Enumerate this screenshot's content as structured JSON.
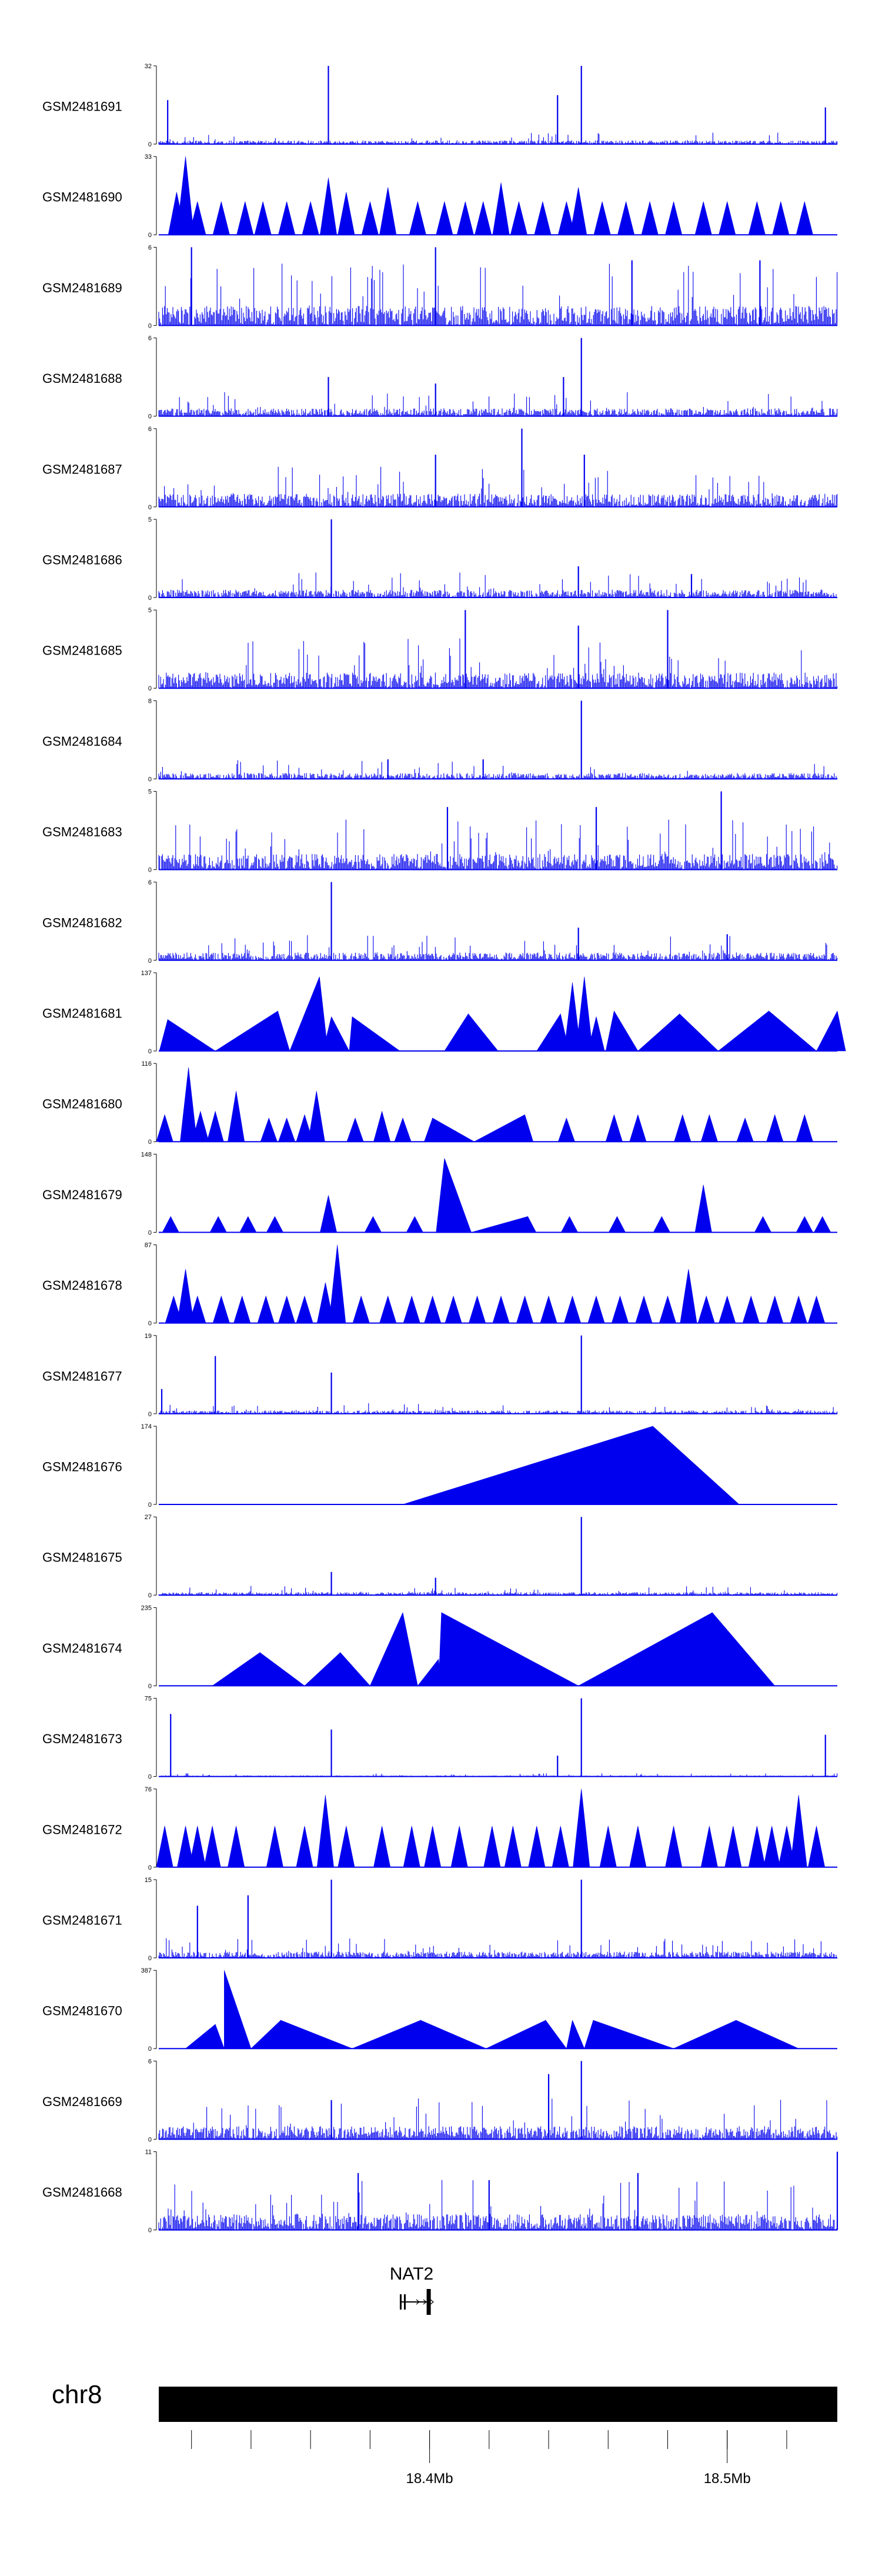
{
  "figure": {
    "chromosome": "chr8",
    "gene": {
      "name": "NAT2",
      "start_mb": 18.39,
      "end_mb": 18.4
    },
    "x_range_mb": [
      18.309,
      18.537
    ],
    "genome_ticks": [
      {
        "mb": 18.4,
        "label": "18.4Mb"
      },
      {
        "mb": 18.5,
        "label": "18.5Mb"
      }
    ],
    "minor_ticks_mb": [
      18.32,
      18.34,
      18.36,
      18.38,
      18.4,
      18.42,
      18.44,
      18.46,
      18.48,
      18.5,
      18.52
    ],
    "colors": {
      "signal": "#0000ee",
      "ideogram": "#000000",
      "axis": "#000000",
      "gene": "#000000"
    }
  },
  "chart_data": {
    "type": "area",
    "title": "",
    "xlabel": "chr8",
    "ylabel": "",
    "x_unit": "Mb",
    "x_range": [
      18.309,
      18.537
    ],
    "series": [
      {
        "name": "GSM2481691",
        "ymax": 32,
        "style": "noise",
        "baseline": 1.5,
        "spikes": [
          [
            18.366,
            32
          ],
          [
            18.443,
            20
          ],
          [
            18.451,
            32
          ],
          [
            18.533,
            15
          ],
          [
            18.312,
            18
          ]
        ]
      },
      {
        "name": "GSM2481690",
        "ymax": 33,
        "style": "triangles",
        "peaks": [
          [
            18.315,
            18
          ],
          [
            18.318,
            33
          ],
          [
            18.322,
            14
          ],
          [
            18.33,
            14
          ],
          [
            18.338,
            14
          ],
          [
            18.344,
            14
          ],
          [
            18.352,
            14
          ],
          [
            18.36,
            14
          ],
          [
            18.366,
            24
          ],
          [
            18.372,
            18
          ],
          [
            18.38,
            14
          ],
          [
            18.386,
            20
          ],
          [
            18.396,
            14
          ],
          [
            18.405,
            14
          ],
          [
            18.412,
            14
          ],
          [
            18.418,
            14
          ],
          [
            18.424,
            22
          ],
          [
            18.43,
            14
          ],
          [
            18.438,
            14
          ],
          [
            18.446,
            14
          ],
          [
            18.45,
            20
          ],
          [
            18.458,
            14
          ],
          [
            18.466,
            14
          ],
          [
            18.474,
            14
          ],
          [
            18.482,
            14
          ],
          [
            18.492,
            14
          ],
          [
            18.5,
            14
          ],
          [
            18.51,
            14
          ],
          [
            18.518,
            14
          ],
          [
            18.526,
            14
          ]
        ]
      },
      {
        "name": "GSM2481689",
        "ymax": 6,
        "style": "noise",
        "baseline": 1.5,
        "spikes": [
          [
            18.32,
            6
          ],
          [
            18.402,
            6
          ],
          [
            18.468,
            5
          ],
          [
            18.511,
            5
          ]
        ]
      },
      {
        "name": "GSM2481688",
        "ymax": 6,
        "style": "noise",
        "baseline": 0.6,
        "spikes": [
          [
            18.451,
            6
          ],
          [
            18.366,
            3
          ],
          [
            18.402,
            2.5
          ],
          [
            18.445,
            3
          ]
        ]
      },
      {
        "name": "GSM2481687",
        "ymax": 6,
        "style": "noise",
        "baseline": 1.0,
        "spikes": [
          [
            18.431,
            6
          ],
          [
            18.402,
            4
          ],
          [
            18.452,
            4
          ]
        ]
      },
      {
        "name": "GSM2481686",
        "ymax": 5,
        "style": "noise",
        "baseline": 0.5,
        "spikes": [
          [
            18.367,
            5
          ],
          [
            18.45,
            2
          ],
          [
            18.488,
            1.5
          ]
        ]
      },
      {
        "name": "GSM2481685",
        "ymax": 5,
        "style": "noise",
        "baseline": 1.0,
        "spikes": [
          [
            18.412,
            5
          ],
          [
            18.48,
            5
          ],
          [
            18.45,
            4
          ]
        ]
      },
      {
        "name": "GSM2481684",
        "ymax": 8,
        "style": "noise",
        "baseline": 0.6,
        "spikes": [
          [
            18.451,
            8
          ],
          [
            18.386,
            2
          ],
          [
            18.418,
            2
          ]
        ]
      },
      {
        "name": "GSM2481683",
        "ymax": 5,
        "style": "noise",
        "baseline": 1.0,
        "spikes": [
          [
            18.498,
            5
          ],
          [
            18.406,
            4
          ],
          [
            18.456,
            4
          ]
        ]
      },
      {
        "name": "GSM2481682",
        "ymax": 6,
        "style": "noise",
        "baseline": 0.6,
        "spikes": [
          [
            18.367,
            6
          ],
          [
            18.45,
            2.5
          ],
          [
            18.5,
            2
          ]
        ]
      },
      {
        "name": "GSM2481681",
        "ymax": 137,
        "style": "triangles",
        "peaks": [
          [
            18.312,
            55
          ],
          [
            18.328,
            0
          ],
          [
            18.353,
            0
          ],
          [
            18.373,
            0
          ],
          [
            18.349,
            70
          ],
          [
            18.363,
            130
          ],
          [
            18.367,
            60
          ],
          [
            18.374,
            60
          ],
          [
            18.39,
            0
          ],
          [
            18.405,
            0
          ],
          [
            18.413,
            65
          ],
          [
            18.423,
            0
          ],
          [
            18.436,
            0
          ],
          [
            18.444,
            65
          ],
          [
            18.448,
            120
          ],
          [
            18.452,
            130
          ],
          [
            18.456,
            60
          ],
          [
            18.462,
            70
          ],
          [
            18.47,
            0
          ],
          [
            18.484,
            65
          ],
          [
            18.497,
            0
          ],
          [
            18.514,
            70
          ],
          [
            18.53,
            0
          ],
          [
            18.537,
            70
          ]
        ]
      },
      {
        "name": "GSM2481680",
        "ymax": 116,
        "style": "triangles",
        "peaks": [
          [
            18.311,
            40
          ],
          [
            18.319,
            110
          ],
          [
            18.323,
            45
          ],
          [
            18.328,
            45
          ],
          [
            18.335,
            75
          ],
          [
            18.346,
            35
          ],
          [
            18.352,
            35
          ],
          [
            18.358,
            40
          ],
          [
            18.362,
            75
          ],
          [
            18.375,
            35
          ],
          [
            18.384,
            45
          ],
          [
            18.391,
            35
          ],
          [
            18.401,
            35
          ],
          [
            18.415,
            0
          ],
          [
            18.432,
            40
          ],
          [
            18.446,
            35
          ],
          [
            18.462,
            40
          ],
          [
            18.47,
            40
          ],
          [
            18.485,
            40
          ],
          [
            18.494,
            40
          ],
          [
            18.506,
            35
          ],
          [
            18.516,
            40
          ],
          [
            18.526,
            40
          ]
        ]
      },
      {
        "name": "GSM2481679",
        "ymax": 148,
        "style": "triangles",
        "peaks": [
          [
            18.313,
            30
          ],
          [
            18.329,
            30
          ],
          [
            18.339,
            30
          ],
          [
            18.348,
            30
          ],
          [
            18.366,
            70
          ],
          [
            18.381,
            30
          ],
          [
            18.395,
            30
          ],
          [
            18.405,
            140
          ],
          [
            18.414,
            0
          ],
          [
            18.433,
            30
          ],
          [
            18.447,
            30
          ],
          [
            18.463,
            30
          ],
          [
            18.478,
            30
          ],
          [
            18.492,
            90
          ],
          [
            18.512,
            30
          ],
          [
            18.526,
            30
          ],
          [
            18.532,
            30
          ]
        ]
      },
      {
        "name": "GSM2481678",
        "ymax": 87,
        "style": "triangles",
        "peaks": [
          [
            18.314,
            30
          ],
          [
            18.318,
            60
          ],
          [
            18.322,
            30
          ],
          [
            18.33,
            30
          ],
          [
            18.337,
            30
          ],
          [
            18.345,
            30
          ],
          [
            18.352,
            30
          ],
          [
            18.358,
            30
          ],
          [
            18.365,
            45
          ],
          [
            18.369,
            87
          ],
          [
            18.377,
            30
          ],
          [
            18.386,
            30
          ],
          [
            18.394,
            30
          ],
          [
            18.401,
            30
          ],
          [
            18.408,
            30
          ],
          [
            18.416,
            30
          ],
          [
            18.424,
            30
          ],
          [
            18.432,
            30
          ],
          [
            18.44,
            30
          ],
          [
            18.448,
            30
          ],
          [
            18.456,
            30
          ],
          [
            18.464,
            30
          ],
          [
            18.472,
            30
          ],
          [
            18.48,
            30
          ],
          [
            18.487,
            60
          ],
          [
            18.493,
            30
          ],
          [
            18.5,
            30
          ],
          [
            18.508,
            30
          ],
          [
            18.516,
            30
          ],
          [
            18.524,
            30
          ],
          [
            18.53,
            30
          ]
        ]
      },
      {
        "name": "GSM2481677",
        "ymax": 19,
        "style": "noise",
        "baseline": 0.8,
        "spikes": [
          [
            18.451,
            19
          ],
          [
            18.328,
            14
          ],
          [
            18.367,
            10
          ],
          [
            18.31,
            6
          ]
        ]
      },
      {
        "name": "GSM2481676",
        "ymax": 174,
        "style": "triangles",
        "peaks": [
          [
            18.391,
            0
          ],
          [
            18.475,
            174
          ],
          [
            18.504,
            0
          ]
        ]
      },
      {
        "name": "GSM2481675",
        "ymax": 27,
        "style": "noise",
        "baseline": 1.0,
        "spikes": [
          [
            18.451,
            27
          ],
          [
            18.367,
            8
          ],
          [
            18.402,
            6
          ]
        ]
      },
      {
        "name": "GSM2481674",
        "ymax": 235,
        "style": "triangles",
        "peaks": [
          [
            18.327,
            0
          ],
          [
            18.343,
            100
          ],
          [
            18.358,
            0
          ],
          [
            18.37,
            100
          ],
          [
            18.38,
            0
          ],
          [
            18.391,
            220
          ],
          [
            18.396,
            0
          ],
          [
            18.403,
            80
          ],
          [
            18.404,
            220
          ],
          [
            18.45,
            0
          ],
          [
            18.495,
            220
          ],
          [
            18.516,
            0
          ]
        ]
      },
      {
        "name": "GSM2481673",
        "ymax": 75,
        "style": "noise",
        "baseline": 1.0,
        "spikes": [
          [
            18.313,
            60
          ],
          [
            18.367,
            45
          ],
          [
            18.451,
            75
          ],
          [
            18.443,
            20
          ],
          [
            18.533,
            40
          ]
        ]
      },
      {
        "name": "GSM2481672",
        "ymax": 76,
        "style": "triangles",
        "peaks": [
          [
            18.311,
            40
          ],
          [
            18.318,
            40
          ],
          [
            18.322,
            40
          ],
          [
            18.327,
            40
          ],
          [
            18.335,
            40
          ],
          [
            18.348,
            40
          ],
          [
            18.358,
            40
          ],
          [
            18.365,
            70
          ],
          [
            18.372,
            40
          ],
          [
            18.384,
            40
          ],
          [
            18.394,
            40
          ],
          [
            18.401,
            40
          ],
          [
            18.41,
            40
          ],
          [
            18.421,
            40
          ],
          [
            18.428,
            40
          ],
          [
            18.436,
            40
          ],
          [
            18.444,
            40
          ],
          [
            18.451,
            76
          ],
          [
            18.46,
            40
          ],
          [
            18.47,
            40
          ],
          [
            18.482,
            40
          ],
          [
            18.494,
            40
          ],
          [
            18.502,
            40
          ],
          [
            18.51,
            40
          ],
          [
            18.515,
            40
          ],
          [
            18.52,
            40
          ],
          [
            18.524,
            70
          ],
          [
            18.53,
            40
          ]
        ]
      },
      {
        "name": "GSM2481671",
        "ymax": 15,
        "style": "noise",
        "baseline": 1.2,
        "spikes": [
          [
            18.339,
            12
          ],
          [
            18.367,
            15
          ],
          [
            18.451,
            15
          ],
          [
            18.322,
            10
          ]
        ]
      },
      {
        "name": "GSM2481670",
        "ymax": 387,
        "style": "triangles",
        "peaks": [
          [
            18.318,
            0
          ],
          [
            18.328,
            120
          ],
          [
            18.331,
            0
          ],
          [
            18.331,
            387
          ],
          [
            18.34,
            0
          ],
          [
            18.35,
            140
          ],
          [
            18.374,
            0
          ],
          [
            18.397,
            140
          ],
          [
            18.419,
            0
          ],
          [
            18.439,
            140
          ],
          [
            18.446,
            0
          ],
          [
            18.448,
            140
          ],
          [
            18.452,
            0
          ],
          [
            18.455,
            140
          ],
          [
            18.482,
            0
          ],
          [
            18.503,
            140
          ],
          [
            18.524,
            0
          ]
        ]
      },
      {
        "name": "GSM2481669",
        "ymax": 6,
        "style": "noise",
        "baseline": 1.0,
        "spikes": [
          [
            18.451,
            6
          ],
          [
            18.44,
            5
          ],
          [
            18.367,
            3
          ]
        ]
      },
      {
        "name": "GSM2481668",
        "ymax": 11,
        "style": "noise",
        "baseline": 2.2,
        "spikes": [
          [
            18.537,
            11
          ],
          [
            18.376,
            8
          ],
          [
            18.42,
            7
          ],
          [
            18.47,
            8
          ]
        ]
      }
    ]
  }
}
